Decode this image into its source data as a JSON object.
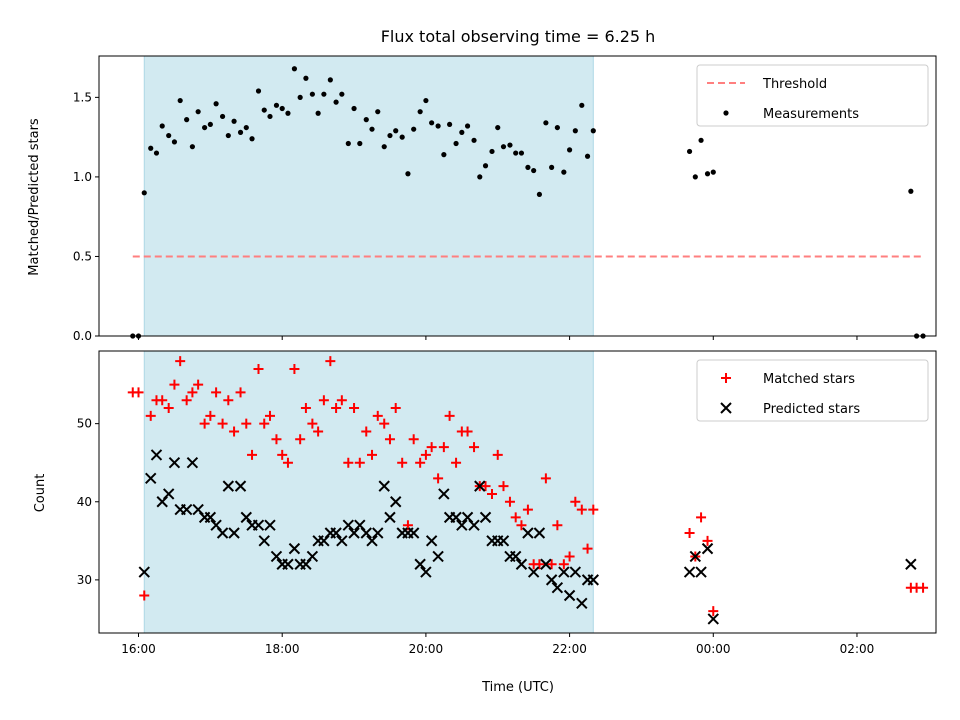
{
  "chart_data": [
    {
      "type": "scatter",
      "title": "Flux total observing time = 6.25 h",
      "xlabel": "",
      "ylabel": "Matched/Predicted stars",
      "xlim": [
        15.45,
        27.1
      ],
      "ylim": [
        0.0,
        1.76
      ],
      "xticks": [
        16,
        18,
        20,
        22,
        24,
        26
      ],
      "xticklabels": [
        "",
        "",
        "",
        "",
        "",
        ""
      ],
      "yticks": [
        0.0,
        0.5,
        1.0,
        1.5
      ],
      "yticklabels": [
        "0.0",
        "0.5",
        "1.0",
        "1.5"
      ],
      "shaded_region": [
        16.08,
        22.33
      ],
      "shade_color": "#add8e6",
      "legend": {
        "position": "upper-right",
        "entries": [
          "Threshold",
          "Measurements"
        ]
      },
      "threshold": {
        "name": "Threshold",
        "x": [
          15.92,
          26.9
        ],
        "y": [
          0.5,
          0.5
        ],
        "color": "#ff7f7f",
        "style": "dashed"
      },
      "series": [
        {
          "name": "Measurements",
          "marker": "dot",
          "color": "#000000",
          "points": [
            [
              15.92,
              0.0
            ],
            [
              16.0,
              0.0
            ],
            [
              16.08,
              0.9
            ],
            [
              16.17,
              1.18
            ],
            [
              16.25,
              1.15
            ],
            [
              16.33,
              1.32
            ],
            [
              16.42,
              1.26
            ],
            [
              16.5,
              1.22
            ],
            [
              16.58,
              1.48
            ],
            [
              16.67,
              1.36
            ],
            [
              16.75,
              1.19
            ],
            [
              16.83,
              1.41
            ],
            [
              16.92,
              1.31
            ],
            [
              17.0,
              1.33
            ],
            [
              17.08,
              1.46
            ],
            [
              17.17,
              1.38
            ],
            [
              17.25,
              1.26
            ],
            [
              17.33,
              1.35
            ],
            [
              17.42,
              1.28
            ],
            [
              17.5,
              1.31
            ],
            [
              17.58,
              1.24
            ],
            [
              17.67,
              1.54
            ],
            [
              17.75,
              1.42
            ],
            [
              17.83,
              1.38
            ],
            [
              17.92,
              1.45
            ],
            [
              18.0,
              1.43
            ],
            [
              18.08,
              1.4
            ],
            [
              18.17,
              1.68
            ],
            [
              18.25,
              1.5
            ],
            [
              18.33,
              1.62
            ],
            [
              18.42,
              1.52
            ],
            [
              18.5,
              1.4
            ],
            [
              18.58,
              1.52
            ],
            [
              18.67,
              1.61
            ],
            [
              18.75,
              1.47
            ],
            [
              18.83,
              1.52
            ],
            [
              18.92,
              1.21
            ],
            [
              19.0,
              1.43
            ],
            [
              19.08,
              1.21
            ],
            [
              19.17,
              1.36
            ],
            [
              19.25,
              1.3
            ],
            [
              19.33,
              1.41
            ],
            [
              19.42,
              1.19
            ],
            [
              19.5,
              1.26
            ],
            [
              19.58,
              1.29
            ],
            [
              19.67,
              1.25
            ],
            [
              19.75,
              1.02
            ],
            [
              19.83,
              1.3
            ],
            [
              19.92,
              1.41
            ],
            [
              20.0,
              1.48
            ],
            [
              20.08,
              1.34
            ],
            [
              20.17,
              1.32
            ],
            [
              20.25,
              1.14
            ],
            [
              20.33,
              1.33
            ],
            [
              20.42,
              1.21
            ],
            [
              20.5,
              1.28
            ],
            [
              20.58,
              1.32
            ],
            [
              20.67,
              1.23
            ],
            [
              20.75,
              1.0
            ],
            [
              20.83,
              1.07
            ],
            [
              20.92,
              1.16
            ],
            [
              21.0,
              1.31
            ],
            [
              21.08,
              1.19
            ],
            [
              21.17,
              1.2
            ],
            [
              21.25,
              1.15
            ],
            [
              21.33,
              1.15
            ],
            [
              21.42,
              1.06
            ],
            [
              21.5,
              1.04
            ],
            [
              21.58,
              0.89
            ],
            [
              21.67,
              1.34
            ],
            [
              21.75,
              1.06
            ],
            [
              21.83,
              1.31
            ],
            [
              21.92,
              1.03
            ],
            [
              22.0,
              1.17
            ],
            [
              22.08,
              1.29
            ],
            [
              22.17,
              1.45
            ],
            [
              22.25,
              1.13
            ],
            [
              22.33,
              1.29
            ],
            [
              23.67,
              1.16
            ],
            [
              23.75,
              1.0
            ],
            [
              23.83,
              1.23
            ],
            [
              23.92,
              1.02
            ],
            [
              24.0,
              1.03
            ],
            [
              26.75,
              0.91
            ],
            [
              26.83,
              0.0
            ],
            [
              26.92,
              0.0
            ]
          ]
        }
      ]
    },
    {
      "type": "scatter",
      "title": "",
      "xlabel": "Time (UTC)",
      "ylabel": "Count",
      "xlim": [
        15.45,
        27.1
      ],
      "ylim": [
        23.2,
        59.3
      ],
      "xticks": [
        16,
        18,
        20,
        22,
        24,
        26
      ],
      "xticklabels": [
        "16:00",
        "18:00",
        "20:00",
        "22:00",
        "00:00",
        "02:00"
      ],
      "yticks": [
        30,
        40,
        50
      ],
      "yticklabels": [
        "30",
        "40",
        "50"
      ],
      "shaded_region": [
        16.08,
        22.33
      ],
      "shade_color": "#add8e6",
      "legend": {
        "position": "upper-right",
        "entries": [
          "Matched stars",
          "Predicted stars"
        ]
      },
      "series": [
        {
          "name": "Matched stars",
          "marker": "plus",
          "color": "#ff0000",
          "points": [
            [
              15.92,
              54
            ],
            [
              16.0,
              54
            ],
            [
              16.08,
              28
            ],
            [
              16.17,
              51
            ],
            [
              16.25,
              53
            ],
            [
              16.33,
              53
            ],
            [
              16.42,
              52
            ],
            [
              16.5,
              55
            ],
            [
              16.58,
              58
            ],
            [
              16.67,
              53
            ],
            [
              16.75,
              54
            ],
            [
              16.83,
              55
            ],
            [
              16.92,
              50
            ],
            [
              17.0,
              51
            ],
            [
              17.08,
              54
            ],
            [
              17.17,
              50
            ],
            [
              17.25,
              53
            ],
            [
              17.33,
              49
            ],
            [
              17.42,
              54
            ],
            [
              17.5,
              50
            ],
            [
              17.58,
              46
            ],
            [
              17.67,
              57
            ],
            [
              17.75,
              50
            ],
            [
              17.83,
              51
            ],
            [
              17.92,
              48
            ],
            [
              18.0,
              46
            ],
            [
              18.08,
              45
            ],
            [
              18.17,
              57
            ],
            [
              18.25,
              48
            ],
            [
              18.33,
              52
            ],
            [
              18.42,
              50
            ],
            [
              18.5,
              49
            ],
            [
              18.58,
              53
            ],
            [
              18.67,
              58
            ],
            [
              18.75,
              52
            ],
            [
              18.83,
              53
            ],
            [
              18.92,
              45
            ],
            [
              19.0,
              52
            ],
            [
              19.08,
              45
            ],
            [
              19.17,
              49
            ],
            [
              19.25,
              46
            ],
            [
              19.33,
              51
            ],
            [
              19.42,
              50
            ],
            [
              19.5,
              48
            ],
            [
              19.58,
              52
            ],
            [
              19.67,
              45
            ],
            [
              19.75,
              37
            ],
            [
              19.83,
              48
            ],
            [
              19.92,
              45
            ],
            [
              20.0,
              46
            ],
            [
              20.08,
              47
            ],
            [
              20.17,
              43
            ],
            [
              20.25,
              47
            ],
            [
              20.33,
              51
            ],
            [
              20.42,
              45
            ],
            [
              20.5,
              49
            ],
            [
              20.58,
              49
            ],
            [
              20.67,
              47
            ],
            [
              20.75,
              42
            ],
            [
              20.83,
              42
            ],
            [
              20.92,
              41
            ],
            [
              21.0,
              46
            ],
            [
              21.08,
              42
            ],
            [
              21.17,
              40
            ],
            [
              21.25,
              38
            ],
            [
              21.33,
              37
            ],
            [
              21.42,
              39
            ],
            [
              21.5,
              32
            ],
            [
              21.58,
              32
            ],
            [
              21.67,
              43
            ],
            [
              21.75,
              32
            ],
            [
              21.83,
              37
            ],
            [
              21.92,
              32
            ],
            [
              22.0,
              33
            ],
            [
              22.08,
              40
            ],
            [
              22.17,
              39
            ],
            [
              22.25,
              34
            ],
            [
              22.33,
              39
            ],
            [
              23.67,
              36
            ],
            [
              23.75,
              33
            ],
            [
              23.83,
              38
            ],
            [
              23.92,
              35
            ],
            [
              24.0,
              26
            ],
            [
              26.75,
              29
            ],
            [
              26.83,
              29
            ],
            [
              26.92,
              29
            ]
          ]
        },
        {
          "name": "Predicted stars",
          "marker": "x",
          "color": "#000000",
          "points": [
            [
              16.08,
              31
            ],
            [
              16.17,
              43
            ],
            [
              16.25,
              46
            ],
            [
              16.33,
              40
            ],
            [
              16.42,
              41
            ],
            [
              16.5,
              45
            ],
            [
              16.58,
              39
            ],
            [
              16.67,
              39
            ],
            [
              16.75,
              45
            ],
            [
              16.83,
              39
            ],
            [
              16.92,
              38
            ],
            [
              17.0,
              38
            ],
            [
              17.08,
              37
            ],
            [
              17.17,
              36
            ],
            [
              17.25,
              42
            ],
            [
              17.33,
              36
            ],
            [
              17.42,
              42
            ],
            [
              17.5,
              38
            ],
            [
              17.58,
              37
            ],
            [
              17.67,
              37
            ],
            [
              17.75,
              35
            ],
            [
              17.83,
              37
            ],
            [
              17.92,
              33
            ],
            [
              18.0,
              32
            ],
            [
              18.08,
              32
            ],
            [
              18.17,
              34
            ],
            [
              18.25,
              32
            ],
            [
              18.33,
              32
            ],
            [
              18.42,
              33
            ],
            [
              18.5,
              35
            ],
            [
              18.58,
              35
            ],
            [
              18.67,
              36
            ],
            [
              18.75,
              36
            ],
            [
              18.83,
              35
            ],
            [
              18.92,
              37
            ],
            [
              19.0,
              36
            ],
            [
              19.08,
              37
            ],
            [
              19.17,
              36
            ],
            [
              19.25,
              35
            ],
            [
              19.33,
              36
            ],
            [
              19.42,
              42
            ],
            [
              19.5,
              38
            ],
            [
              19.58,
              40
            ],
            [
              19.67,
              36
            ],
            [
              19.75,
              36
            ],
            [
              19.83,
              36
            ],
            [
              19.92,
              32
            ],
            [
              20.0,
              31
            ],
            [
              20.08,
              35
            ],
            [
              20.17,
              33
            ],
            [
              20.25,
              41
            ],
            [
              20.33,
              38
            ],
            [
              20.42,
              38
            ],
            [
              20.5,
              37
            ],
            [
              20.58,
              38
            ],
            [
              20.67,
              37
            ],
            [
              20.75,
              42
            ],
            [
              20.83,
              38
            ],
            [
              20.92,
              35
            ],
            [
              21.0,
              35
            ],
            [
              21.08,
              35
            ],
            [
              21.17,
              33
            ],
            [
              21.25,
              33
            ],
            [
              21.33,
              32
            ],
            [
              21.42,
              36
            ],
            [
              21.5,
              31
            ],
            [
              21.58,
              36
            ],
            [
              21.67,
              32
            ],
            [
              21.75,
              30
            ],
            [
              21.83,
              29
            ],
            [
              21.92,
              31
            ],
            [
              22.0,
              28
            ],
            [
              22.08,
              31
            ],
            [
              22.17,
              27
            ],
            [
              22.25,
              30
            ],
            [
              22.33,
              30
            ],
            [
              23.67,
              31
            ],
            [
              23.75,
              33
            ],
            [
              23.83,
              31
            ],
            [
              23.92,
              34
            ],
            [
              24.0,
              25
            ],
            [
              26.75,
              32
            ]
          ]
        }
      ]
    }
  ]
}
